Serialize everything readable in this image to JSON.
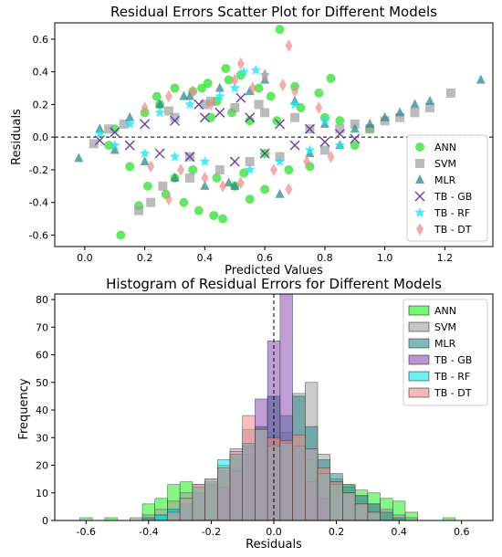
{
  "chart_data": [
    {
      "type": "scatter",
      "title": "Residual Errors Scatter Plot for Different Models",
      "xlabel": "Predicted Values",
      "ylabel": "Residuals",
      "xlim": [
        -0.1,
        1.36
      ],
      "ylim": [
        -0.67,
        0.7
      ],
      "xticks": [
        0.0,
        0.2,
        0.4,
        0.6,
        0.8,
        1.0,
        1.2
      ],
      "yticks": [
        -0.6,
        -0.4,
        -0.2,
        0.0,
        0.2,
        0.4,
        0.6
      ],
      "reference_line": {
        "y": 0.0,
        "style": "dashed"
      },
      "legend": "bottom-right",
      "series": [
        {
          "name": "ANN",
          "marker": "circle",
          "color": "#22dd22",
          "x": [
            0.12,
            0.18,
            0.21,
            0.24,
            0.27,
            0.3,
            0.33,
            0.36,
            0.38,
            0.41,
            0.43,
            0.44,
            0.46,
            0.48,
            0.5,
            0.52,
            0.55,
            0.58,
            0.6,
            0.62,
            0.65,
            0.68,
            0.7,
            0.72,
            0.75,
            0.78,
            0.8,
            0.82,
            0.44,
            0.47,
            0.36,
            0.3,
            0.25,
            0.55,
            0.6,
            0.49,
            0.42,
            0.53,
            0.64,
            0.39,
            0.2,
            0.15,
            0.1,
            0.08,
            0.85,
            0.9,
            0.95
          ],
          "y": [
            -0.6,
            -0.42,
            -0.3,
            0.25,
            -0.35,
            0.3,
            -0.4,
            0.28,
            -0.45,
            0.33,
            -0.48,
            0.22,
            -0.5,
            0.35,
            -0.3,
            0.38,
            -0.38,
            0.3,
            -0.32,
            0.25,
            0.66,
            -0.2,
            0.31,
            0.18,
            -0.18,
            0.27,
            0.12,
            0.36,
            -0.25,
            0.42,
            -0.2,
            -0.25,
            0.2,
            0.1,
            -0.1,
            0.15,
            0.12,
            -0.22,
            0.1,
            0.3,
            0.15,
            -0.18,
            0.05,
            -0.05,
            0.1,
            -0.05,
            0.05
          ]
        },
        {
          "name": "SVM",
          "marker": "square",
          "color": "#9e9e9e",
          "x": [
            0.03,
            0.08,
            0.13,
            0.18,
            0.22,
            0.26,
            0.3,
            0.35,
            0.4,
            0.45,
            0.5,
            0.55,
            0.6,
            0.65,
            0.7,
            0.75,
            0.8,
            0.85,
            0.9,
            0.95,
            1.0,
            1.05,
            1.1,
            1.15,
            1.22,
            0.28,
            0.35,
            0.42,
            0.58
          ],
          "y": [
            -0.04,
            0.05,
            0.08,
            -0.45,
            -0.4,
            -0.3,
            0.12,
            -0.25,
            0.2,
            -0.2,
            0.18,
            -0.15,
            0.15,
            -0.12,
            0.12,
            0.05,
            -0.08,
            0.05,
            0.08,
            0.05,
            0.1,
            0.12,
            0.15,
            0.18,
            0.27,
            0.16,
            -0.12,
            0.22,
            0.2
          ]
        },
        {
          "name": "MLR",
          "marker": "triangle",
          "color": "#2e8b8b",
          "x": [
            -0.02,
            0.05,
            0.1,
            0.15,
            0.2,
            0.25,
            0.3,
            0.35,
            0.4,
            0.45,
            0.5,
            0.55,
            0.6,
            0.65,
            0.7,
            0.75,
            0.8,
            0.85,
            0.9,
            0.95,
            1.0,
            1.05,
            1.1,
            1.15,
            1.32,
            0.33,
            0.48
          ],
          "y": [
            -0.13,
            0.05,
            -0.08,
            0.12,
            -0.15,
            0.2,
            -0.25,
            0.25,
            -0.3,
            0.3,
            -0.3,
            0.28,
            0.35,
            -0.35,
            0.22,
            -0.1,
            0.08,
            -0.05,
            0.05,
            0.08,
            0.12,
            0.15,
            0.2,
            0.22,
            0.35,
            0.25,
            -0.28
          ]
        },
        {
          "name": "TB - GB",
          "marker": "x",
          "color": "#6a3fa0",
          "x": [
            0.05,
            0.1,
            0.15,
            0.2,
            0.25,
            0.3,
            0.35,
            0.4,
            0.45,
            0.5,
            0.55,
            0.6,
            0.65,
            0.7,
            0.75,
            0.8,
            0.85,
            0.9,
            0.52,
            0.38
          ],
          "y": [
            -0.02,
            0.03,
            -0.05,
            0.08,
            -0.1,
            0.1,
            -0.12,
            0.12,
            0.15,
            -0.15,
            0.12,
            -0.1,
            0.08,
            -0.05,
            0.05,
            -0.03,
            0.02,
            -0.01,
            0.24,
            0.2
          ]
        },
        {
          "name": "TB - RF",
          "marker": "star",
          "color": "#1ee6f0",
          "x": [
            0.05,
            0.1,
            0.15,
            0.2,
            0.25,
            0.3,
            0.35,
            0.4,
            0.45,
            0.5,
            0.55,
            0.6,
            0.65,
            0.7,
            0.75,
            0.8,
            0.85,
            0.53,
            0.57
          ],
          "y": [
            0.02,
            -0.05,
            0.08,
            -0.1,
            0.15,
            -0.12,
            0.2,
            -0.15,
            0.25,
            0.3,
            -0.2,
            0.38,
            -0.15,
            0.2,
            -0.08,
            0.1,
            -0.05,
            0.4,
            0.41
          ]
        },
        {
          "name": "TB - DT",
          "marker": "diamond",
          "color": "#f08a8a",
          "x": [
            0.2,
            0.22,
            0.28,
            0.32,
            0.36,
            0.4,
            0.42,
            0.46,
            0.5,
            0.52,
            0.56,
            0.6,
            0.63,
            0.66,
            0.68,
            0.7,
            0.74,
            0.78,
            0.82,
            0.28,
            0.52,
            0.68
          ],
          "y": [
            0.18,
            -0.18,
            0.25,
            -0.2,
            0.28,
            -0.25,
            0.2,
            -0.3,
            0.35,
            -0.28,
            0.3,
            0.38,
            -0.2,
            0.32,
            0.56,
            0.28,
            -0.15,
            0.18,
            -0.12,
            -0.38,
            0.45,
            -0.32
          ]
        }
      ]
    },
    {
      "type": "histogram",
      "title": "Histogram of Residual Errors for Different Models",
      "xlabel": "Residuals",
      "ylabel": "Frequency",
      "xlim": [
        -0.7,
        0.7
      ],
      "ylim": [
        0,
        82
      ],
      "xticks": [
        -0.6,
        -0.4,
        -0.2,
        0.0,
        0.2,
        0.4,
        0.6
      ],
      "yticks": [
        0,
        10,
        20,
        30,
        40,
        50,
        60,
        70,
        80
      ],
      "reference_line": {
        "x": 0.0,
        "style": "dashed"
      },
      "legend": "top-right",
      "bin_width": 0.04,
      "series": [
        {
          "name": "ANN",
          "color": "#22ee22",
          "bins": [
            {
              "x0": -0.62,
              "count": 1
            },
            {
              "x0": -0.54,
              "count": 1
            },
            {
              "x0": -0.42,
              "count": 6
            },
            {
              "x0": -0.38,
              "count": 8
            },
            {
              "x0": -0.34,
              "count": 13
            },
            {
              "x0": -0.3,
              "count": 14
            },
            {
              "x0": -0.26,
              "count": 12
            },
            {
              "x0": -0.22,
              "count": 14
            },
            {
              "x0": -0.18,
              "count": 16
            },
            {
              "x0": -0.14,
              "count": 22
            },
            {
              "x0": -0.1,
              "count": 24
            },
            {
              "x0": -0.06,
              "count": 30
            },
            {
              "x0": -0.02,
              "count": 32
            },
            {
              "x0": 0.02,
              "count": 29
            },
            {
              "x0": 0.06,
              "count": 26
            },
            {
              "x0": 0.1,
              "count": 22
            },
            {
              "x0": 0.14,
              "count": 17
            },
            {
              "x0": 0.18,
              "count": 14
            },
            {
              "x0": 0.22,
              "count": 13
            },
            {
              "x0": 0.26,
              "count": 11
            },
            {
              "x0": 0.3,
              "count": 10
            },
            {
              "x0": 0.34,
              "count": 8
            },
            {
              "x0": 0.38,
              "count": 7
            },
            {
              "x0": 0.42,
              "count": 3
            },
            {
              "x0": 0.54,
              "count": 1
            }
          ]
        },
        {
          "name": "SVM",
          "color": "#a0a0a0",
          "bins": [
            {
              "x0": -0.46,
              "count": 1
            },
            {
              "x0": -0.42,
              "count": 2
            },
            {
              "x0": -0.38,
              "count": 4
            },
            {
              "x0": -0.34,
              "count": 7
            },
            {
              "x0": -0.3,
              "count": 10
            },
            {
              "x0": -0.26,
              "count": 13
            },
            {
              "x0": -0.22,
              "count": 14
            },
            {
              "x0": -0.18,
              "count": 20
            },
            {
              "x0": -0.14,
              "count": 26
            },
            {
              "x0": -0.1,
              "count": 33
            },
            {
              "x0": -0.06,
              "count": 34
            },
            {
              "x0": -0.02,
              "count": 45
            },
            {
              "x0": 0.02,
              "count": 32
            },
            {
              "x0": 0.06,
              "count": 46
            },
            {
              "x0": 0.1,
              "count": 50
            },
            {
              "x0": 0.14,
              "count": 24
            },
            {
              "x0": 0.18,
              "count": 15
            },
            {
              "x0": 0.22,
              "count": 12
            },
            {
              "x0": 0.26,
              "count": 9
            },
            {
              "x0": 0.3,
              "count": 6
            },
            {
              "x0": 0.34,
              "count": 4
            },
            {
              "x0": 0.38,
              "count": 2
            },
            {
              "x0": 0.42,
              "count": 1
            }
          ]
        },
        {
          "name": "MLR",
          "color": "#2e8b8b",
          "bins": [
            {
              "x0": -0.42,
              "count": 1
            },
            {
              "x0": -0.38,
              "count": 2
            },
            {
              "x0": -0.34,
              "count": 4
            },
            {
              "x0": -0.3,
              "count": 6
            },
            {
              "x0": -0.26,
              "count": 10
            },
            {
              "x0": -0.22,
              "count": 13
            },
            {
              "x0": -0.18,
              "count": 18
            },
            {
              "x0": -0.14,
              "count": 24
            },
            {
              "x0": -0.1,
              "count": 27
            },
            {
              "x0": -0.06,
              "count": 34
            },
            {
              "x0": -0.02,
              "count": 45
            },
            {
              "x0": 0.02,
              "count": 38
            },
            {
              "x0": 0.06,
              "count": 45
            },
            {
              "x0": 0.1,
              "count": 34
            },
            {
              "x0": 0.14,
              "count": 22
            },
            {
              "x0": 0.18,
              "count": 17
            },
            {
              "x0": 0.22,
              "count": 13
            },
            {
              "x0": 0.26,
              "count": 9
            },
            {
              "x0": 0.3,
              "count": 6
            },
            {
              "x0": 0.34,
              "count": 3
            },
            {
              "x0": 0.38,
              "count": 1
            }
          ]
        },
        {
          "name": "TB - GB",
          "color": "#8a4fb8",
          "bins": [
            {
              "x0": -0.18,
              "count": 12
            },
            {
              "x0": -0.14,
              "count": 18
            },
            {
              "x0": -0.1,
              "count": 28
            },
            {
              "x0": -0.06,
              "count": 44
            },
            {
              "x0": -0.02,
              "count": 65
            },
            {
              "x0": 0.02,
              "count": 83
            },
            {
              "x0": 0.06,
              "count": 27
            },
            {
              "x0": 0.1,
              "count": 14
            },
            {
              "x0": 0.14,
              "count": 8
            }
          ]
        },
        {
          "name": "TB - RF",
          "color": "#11e5ee",
          "bins": [
            {
              "x0": -0.38,
              "count": 2
            },
            {
              "x0": -0.34,
              "count": 4
            },
            {
              "x0": -0.3,
              "count": 8
            },
            {
              "x0": -0.26,
              "count": 12
            },
            {
              "x0": -0.22,
              "count": 15
            },
            {
              "x0": -0.18,
              "count": 22
            },
            {
              "x0": -0.14,
              "count": 24
            },
            {
              "x0": -0.1,
              "count": 28
            },
            {
              "x0": -0.06,
              "count": 33
            },
            {
              "x0": -0.02,
              "count": 27
            },
            {
              "x0": 0.02,
              "count": 28
            },
            {
              "x0": 0.06,
              "count": 27
            },
            {
              "x0": 0.1,
              "count": 26
            },
            {
              "x0": 0.14,
              "count": 17
            },
            {
              "x0": 0.18,
              "count": 13
            },
            {
              "x0": 0.22,
              "count": 10
            },
            {
              "x0": 0.26,
              "count": 6
            },
            {
              "x0": 0.3,
              "count": 3
            }
          ]
        },
        {
          "name": "TB - DT",
          "color": "#f08a8a",
          "bins": [
            {
              "x0": -0.34,
              "count": 3
            },
            {
              "x0": -0.3,
              "count": 8
            },
            {
              "x0": -0.26,
              "count": 13
            },
            {
              "x0": -0.22,
              "count": 15
            },
            {
              "x0": -0.18,
              "count": 19
            },
            {
              "x0": -0.14,
              "count": 25
            },
            {
              "x0": -0.1,
              "count": 38
            },
            {
              "x0": -0.06,
              "count": 33
            },
            {
              "x0": -0.02,
              "count": 30
            },
            {
              "x0": 0.02,
              "count": 29
            },
            {
              "x0": 0.06,
              "count": 31
            },
            {
              "x0": 0.1,
              "count": 26
            },
            {
              "x0": 0.14,
              "count": 19
            },
            {
              "x0": 0.18,
              "count": 14
            },
            {
              "x0": 0.22,
              "count": 10
            },
            {
              "x0": 0.26,
              "count": 6
            },
            {
              "x0": 0.3,
              "count": 3
            }
          ]
        }
      ]
    }
  ]
}
